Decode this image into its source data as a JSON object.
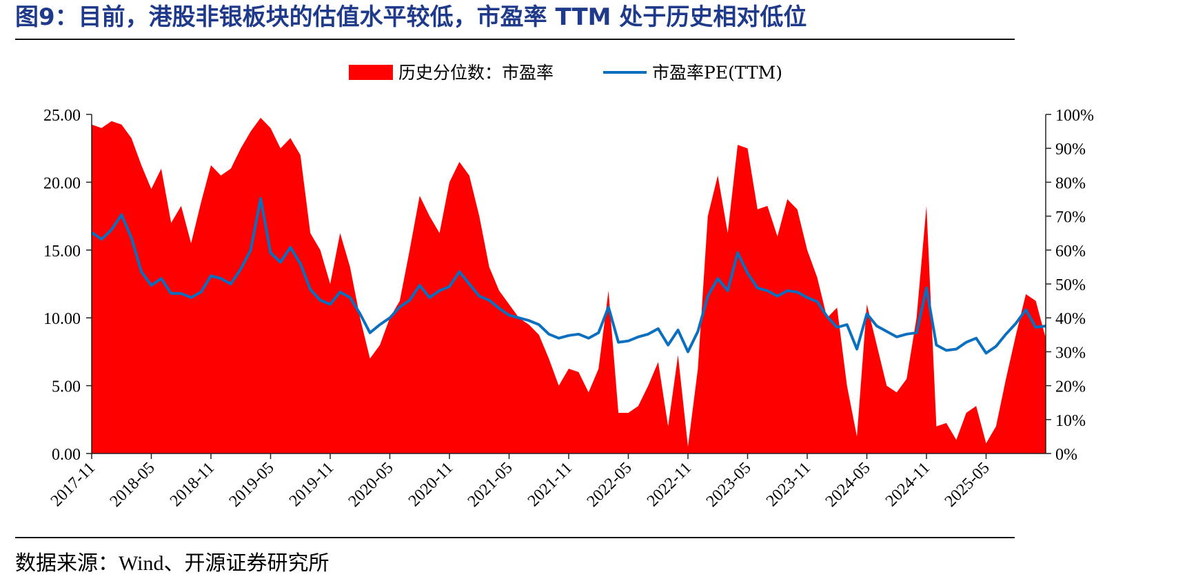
{
  "title": "图9：目前，港股非银板块的估值水平较低，市盈率 TTM 处于历史相对低位",
  "source": "数据来源：Wind、开源证券研究所",
  "colors": {
    "title": "#1f3a8a",
    "area": "#ff0000",
    "line": "#0b6fbf",
    "axis": "#222222",
    "text": "#000000"
  },
  "chart_data": {
    "type": "area",
    "legend_position": "top-center",
    "grid": false,
    "legend": [
      {
        "label": "历史分位数：市盈率",
        "kind": "area"
      },
      {
        "label": "市盈率PE(TTM)",
        "kind": "line"
      }
    ],
    "y_left": {
      "min": 0,
      "max": 25,
      "ticks": [
        "0.00",
        "5.00",
        "10.00",
        "15.00",
        "20.00",
        "25.00"
      ]
    },
    "y_right": {
      "min": 0,
      "max": 100,
      "ticks": [
        "0%",
        "10%",
        "20%",
        "30%",
        "40%",
        "50%",
        "60%",
        "70%",
        "80%",
        "90%",
        "100%"
      ]
    },
    "x_ticks": [
      "2017-11",
      "2018-05",
      "2018-11",
      "2019-05",
      "2019-11",
      "2020-05",
      "2020-11",
      "2021-05",
      "2021-11",
      "2022-05",
      "2022-11",
      "2023-05",
      "2023-11",
      "2024-05",
      "2024-11",
      "2025-05"
    ],
    "x_start": "2017-11",
    "x_end": "2025-11",
    "series": [
      {
        "name": "历史分位数：市盈率",
        "axis": "right",
        "points": [
          [
            "2017-11",
            97
          ],
          [
            "2017-12",
            96
          ],
          [
            "2018-01",
            98
          ],
          [
            "2018-02",
            97
          ],
          [
            "2018-03",
            93
          ],
          [
            "2018-04",
            85
          ],
          [
            "2018-05",
            78
          ],
          [
            "2018-06",
            84
          ],
          [
            "2018-07",
            68
          ],
          [
            "2018-08",
            73
          ],
          [
            "2018-09",
            62
          ],
          [
            "2018-10",
            74
          ],
          [
            "2018-11",
            85
          ],
          [
            "2018-12",
            82
          ],
          [
            "2019-01",
            84
          ],
          [
            "2019-02",
            90
          ],
          [
            "2019-03",
            95
          ],
          [
            "2019-04",
            99
          ],
          [
            "2019-05",
            96
          ],
          [
            "2019-06",
            90
          ],
          [
            "2019-07",
            93
          ],
          [
            "2019-08",
            88
          ],
          [
            "2019-09",
            65
          ],
          [
            "2019-10",
            60
          ],
          [
            "2019-11",
            50
          ],
          [
            "2019-12",
            65
          ],
          [
            "2020-01",
            55
          ],
          [
            "2020-02",
            40
          ],
          [
            "2020-03",
            28
          ],
          [
            "2020-04",
            32
          ],
          [
            "2020-05",
            40
          ],
          [
            "2020-06",
            45
          ],
          [
            "2020-07",
            60
          ],
          [
            "2020-08",
            76
          ],
          [
            "2020-09",
            70
          ],
          [
            "2020-10",
            65
          ],
          [
            "2020-11",
            80
          ],
          [
            "2020-12",
            86
          ],
          [
            "2021-01",
            82
          ],
          [
            "2021-02",
            70
          ],
          [
            "2021-03",
            55
          ],
          [
            "2021-04",
            48
          ],
          [
            "2021-05",
            44
          ],
          [
            "2021-06",
            40
          ],
          [
            "2021-07",
            38
          ],
          [
            "2021-08",
            35
          ],
          [
            "2021-09",
            28
          ],
          [
            "2021-10",
            20
          ],
          [
            "2021-11",
            25
          ],
          [
            "2021-12",
            24
          ],
          [
            "2022-01",
            18
          ],
          [
            "2022-02",
            25
          ],
          [
            "2022-03",
            48
          ],
          [
            "2022-04",
            12
          ],
          [
            "2022-05",
            12
          ],
          [
            "2022-06",
            14
          ],
          [
            "2022-07",
            20
          ],
          [
            "2022-08",
            27
          ],
          [
            "2022-09",
            8
          ],
          [
            "2022-10",
            29
          ],
          [
            "2022-11",
            2
          ],
          [
            "2022-12",
            25
          ],
          [
            "2023-01",
            70
          ],
          [
            "2023-02",
            82
          ],
          [
            "2023-03",
            65
          ],
          [
            "2023-04",
            91
          ],
          [
            "2023-05",
            90
          ],
          [
            "2023-06",
            72
          ],
          [
            "2023-07",
            73
          ],
          [
            "2023-08",
            64
          ],
          [
            "2023-09",
            75
          ],
          [
            "2023-10",
            72
          ],
          [
            "2023-11",
            60
          ],
          [
            "2023-12",
            52
          ],
          [
            "2024-01",
            40
          ],
          [
            "2024-02",
            43
          ],
          [
            "2024-03",
            20
          ],
          [
            "2024-04",
            5
          ],
          [
            "2024-05",
            44
          ],
          [
            "2024-06",
            32
          ],
          [
            "2024-07",
            20
          ],
          [
            "2024-08",
            18
          ],
          [
            "2024-09",
            22
          ],
          [
            "2024-10",
            40
          ],
          [
            "2024-11",
            73
          ],
          [
            "2024-12",
            8
          ],
          [
            "2025-01",
            9
          ],
          [
            "2025-02",
            4
          ],
          [
            "2025-03",
            12
          ],
          [
            "2025-04",
            14
          ],
          [
            "2025-05",
            3
          ],
          [
            "2025-06",
            8
          ],
          [
            "2025-07",
            22
          ],
          [
            "2025-08",
            35
          ],
          [
            "2025-09",
            47
          ],
          [
            "2025-10",
            45
          ],
          [
            "2025-11",
            34
          ]
        ]
      },
      {
        "name": "市盈率PE(TTM)",
        "axis": "left",
        "points": [
          [
            "2017-11",
            16.3
          ],
          [
            "2017-12",
            15.8
          ],
          [
            "2018-01",
            16.5
          ],
          [
            "2018-02",
            17.6
          ],
          [
            "2018-03",
            15.9
          ],
          [
            "2018-04",
            13.4
          ],
          [
            "2018-05",
            12.4
          ],
          [
            "2018-06",
            12.9
          ],
          [
            "2018-07",
            11.8
          ],
          [
            "2018-08",
            11.8
          ],
          [
            "2018-09",
            11.5
          ],
          [
            "2018-10",
            11.9
          ],
          [
            "2018-11",
            13.1
          ],
          [
            "2018-12",
            12.9
          ],
          [
            "2019-01",
            12.5
          ],
          [
            "2019-02",
            13.6
          ],
          [
            "2019-03",
            15.0
          ],
          [
            "2019-04",
            18.8
          ],
          [
            "2019-05",
            14.8
          ],
          [
            "2019-06",
            14.1
          ],
          [
            "2019-07",
            15.2
          ],
          [
            "2019-08",
            14.0
          ],
          [
            "2019-09",
            12.1
          ],
          [
            "2019-10",
            11.3
          ],
          [
            "2019-11",
            11.0
          ],
          [
            "2019-12",
            11.9
          ],
          [
            "2020-01",
            11.5
          ],
          [
            "2020-02",
            10.3
          ],
          [
            "2020-03",
            8.9
          ],
          [
            "2020-04",
            9.5
          ],
          [
            "2020-05",
            10.0
          ],
          [
            "2020-06",
            10.8
          ],
          [
            "2020-07",
            11.3
          ],
          [
            "2020-08",
            12.4
          ],
          [
            "2020-09",
            11.5
          ],
          [
            "2020-10",
            12.0
          ],
          [
            "2020-11",
            12.3
          ],
          [
            "2020-12",
            13.4
          ],
          [
            "2021-01",
            12.5
          ],
          [
            "2021-02",
            11.6
          ],
          [
            "2021-03",
            11.3
          ],
          [
            "2021-04",
            10.7
          ],
          [
            "2021-05",
            10.2
          ],
          [
            "2021-06",
            10.0
          ],
          [
            "2021-07",
            9.8
          ],
          [
            "2021-08",
            9.5
          ],
          [
            "2021-09",
            8.8
          ],
          [
            "2021-10",
            8.5
          ],
          [
            "2021-11",
            8.7
          ],
          [
            "2021-12",
            8.8
          ],
          [
            "2022-01",
            8.5
          ],
          [
            "2022-02",
            8.9
          ],
          [
            "2022-03",
            10.8
          ],
          [
            "2022-04",
            8.2
          ],
          [
            "2022-05",
            8.3
          ],
          [
            "2022-06",
            8.6
          ],
          [
            "2022-07",
            8.8
          ],
          [
            "2022-08",
            9.2
          ],
          [
            "2022-09",
            8.0
          ],
          [
            "2022-10",
            9.1
          ],
          [
            "2022-11",
            7.5
          ],
          [
            "2022-12",
            9.0
          ],
          [
            "2023-01",
            11.6
          ],
          [
            "2023-02",
            12.9
          ],
          [
            "2023-03",
            12.0
          ],
          [
            "2023-04",
            14.8
          ],
          [
            "2023-05",
            13.3
          ],
          [
            "2023-06",
            12.2
          ],
          [
            "2023-07",
            12.0
          ],
          [
            "2023-08",
            11.6
          ],
          [
            "2023-09",
            12.0
          ],
          [
            "2023-10",
            11.9
          ],
          [
            "2023-11",
            11.5
          ],
          [
            "2023-12",
            11.2
          ],
          [
            "2024-01",
            10.1
          ],
          [
            "2024-02",
            9.3
          ],
          [
            "2024-03",
            9.5
          ],
          [
            "2024-04",
            7.7
          ],
          [
            "2024-05",
            10.3
          ],
          [
            "2024-06",
            9.4
          ],
          [
            "2024-07",
            9.0
          ],
          [
            "2024-08",
            8.6
          ],
          [
            "2024-09",
            8.8
          ],
          [
            "2024-10",
            8.9
          ],
          [
            "2024-11",
            12.2
          ],
          [
            "2024-12",
            8.0
          ],
          [
            "2025-01",
            7.6
          ],
          [
            "2025-02",
            7.7
          ],
          [
            "2025-03",
            8.2
          ],
          [
            "2025-04",
            8.5
          ],
          [
            "2025-05",
            7.4
          ],
          [
            "2025-06",
            7.9
          ],
          [
            "2025-07",
            8.8
          ],
          [
            "2025-08",
            9.6
          ],
          [
            "2025-09",
            10.6
          ],
          [
            "2025-10",
            9.3
          ],
          [
            "2025-11",
            9.4
          ]
        ]
      }
    ]
  }
}
